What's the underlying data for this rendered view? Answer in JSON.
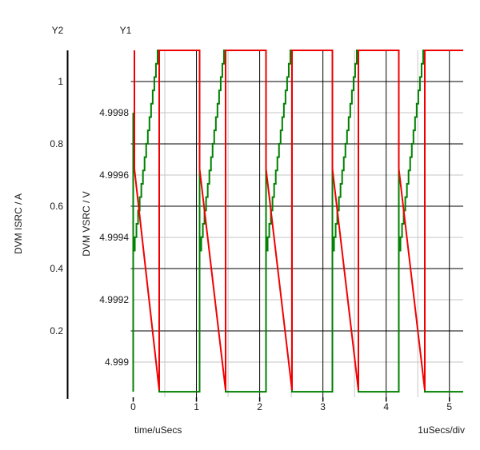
{
  "header": {
    "y2_axis_name": "Y2",
    "y1_axis_name": "Y1"
  },
  "colors": {
    "isrc_trace": "#008000",
    "vsrc_trace": "#f00000",
    "major_grid": "#000000",
    "minor_grid": "#c6c6c6",
    "axis_line": "#000000",
    "text": "#1a1a1a",
    "background": "#ffffff"
  },
  "chart_data": {
    "type": "line",
    "title": "",
    "x_axis_label": "time/uSecs",
    "x_scale_label": "1uSecs/div",
    "x_unit": "uSecs",
    "x_range": [
      0,
      5.22
    ],
    "x_tick_values": [
      0,
      1,
      2,
      3,
      4,
      5
    ],
    "x_tick_labels": [
      "0",
      "1",
      "2",
      "3",
      "4",
      "5"
    ],
    "grid": "on",
    "legend_position": "none",
    "period_us": 1.05,
    "active_phase_us": 0.411,
    "num_cycles": 5,
    "stair_steps": 16,
    "y_axes": [
      {
        "id": "Y2",
        "title": "DVM ISRC / A",
        "unit": "A",
        "tick_values": [
          1,
          0.8,
          0.6,
          0.4,
          0.2
        ],
        "tick_labels": [
          "1",
          "0.8",
          "0.6",
          "0.4",
          "0.2"
        ],
        "range_top": 1.1,
        "range_bottom": -0.013,
        "grid_style": "major-black"
      },
      {
        "id": "Y1",
        "title": "DVM VSRC / V",
        "unit": "V",
        "tick_values": [
          4.9998,
          4.9996,
          4.9994,
          4.9992,
          4.999
        ],
        "tick_labels": [
          "4.9998",
          "4.9996",
          "4.9994",
          "4.9992",
          "4.999"
        ],
        "range_top": 5.0,
        "range_bottom": 4.99889,
        "grid_style": "minor-gray"
      }
    ],
    "series": [
      {
        "name": "DVM ISRC",
        "axis": "Y2",
        "color": "#008000",
        "unit": "A",
        "waveform": "periodic",
        "cycle_breakpoints": [
          {
            "t": 0.0,
            "v": 0.005,
            "note": "baseline"
          },
          {
            "t": 0.0,
            "v": 0.9,
            "note": "turn-on spike peak"
          },
          {
            "t": 0.0,
            "v": 0.415,
            "note": "ramp start"
          },
          {
            "t": 0.411,
            "v": 1.1,
            "note": "stair-step ramp peak, 16 steps"
          },
          {
            "t": 0.411,
            "v": 0.005,
            "note": "drop to baseline"
          },
          {
            "t": 1.05,
            "v": 0.005,
            "note": "baseline until next cycle"
          }
        ]
      },
      {
        "name": "DVM VSRC",
        "axis": "Y1",
        "color": "#f00000",
        "unit": "V",
        "waveform": "periodic",
        "cycle_breakpoints": [
          {
            "t": 0.0,
            "v": 5.0,
            "note": "idle level / flat top"
          },
          {
            "t": 0.0,
            "v": 4.99962,
            "note": "instant sag at load on"
          },
          {
            "t": 0.411,
            "v": 4.99891,
            "note": "linear droop minimum"
          },
          {
            "t": 0.411,
            "v": 5.0,
            "note": "recovery to flat top"
          },
          {
            "t": 1.05,
            "v": 5.0,
            "note": "flat top until next cycle"
          }
        ]
      }
    ]
  }
}
